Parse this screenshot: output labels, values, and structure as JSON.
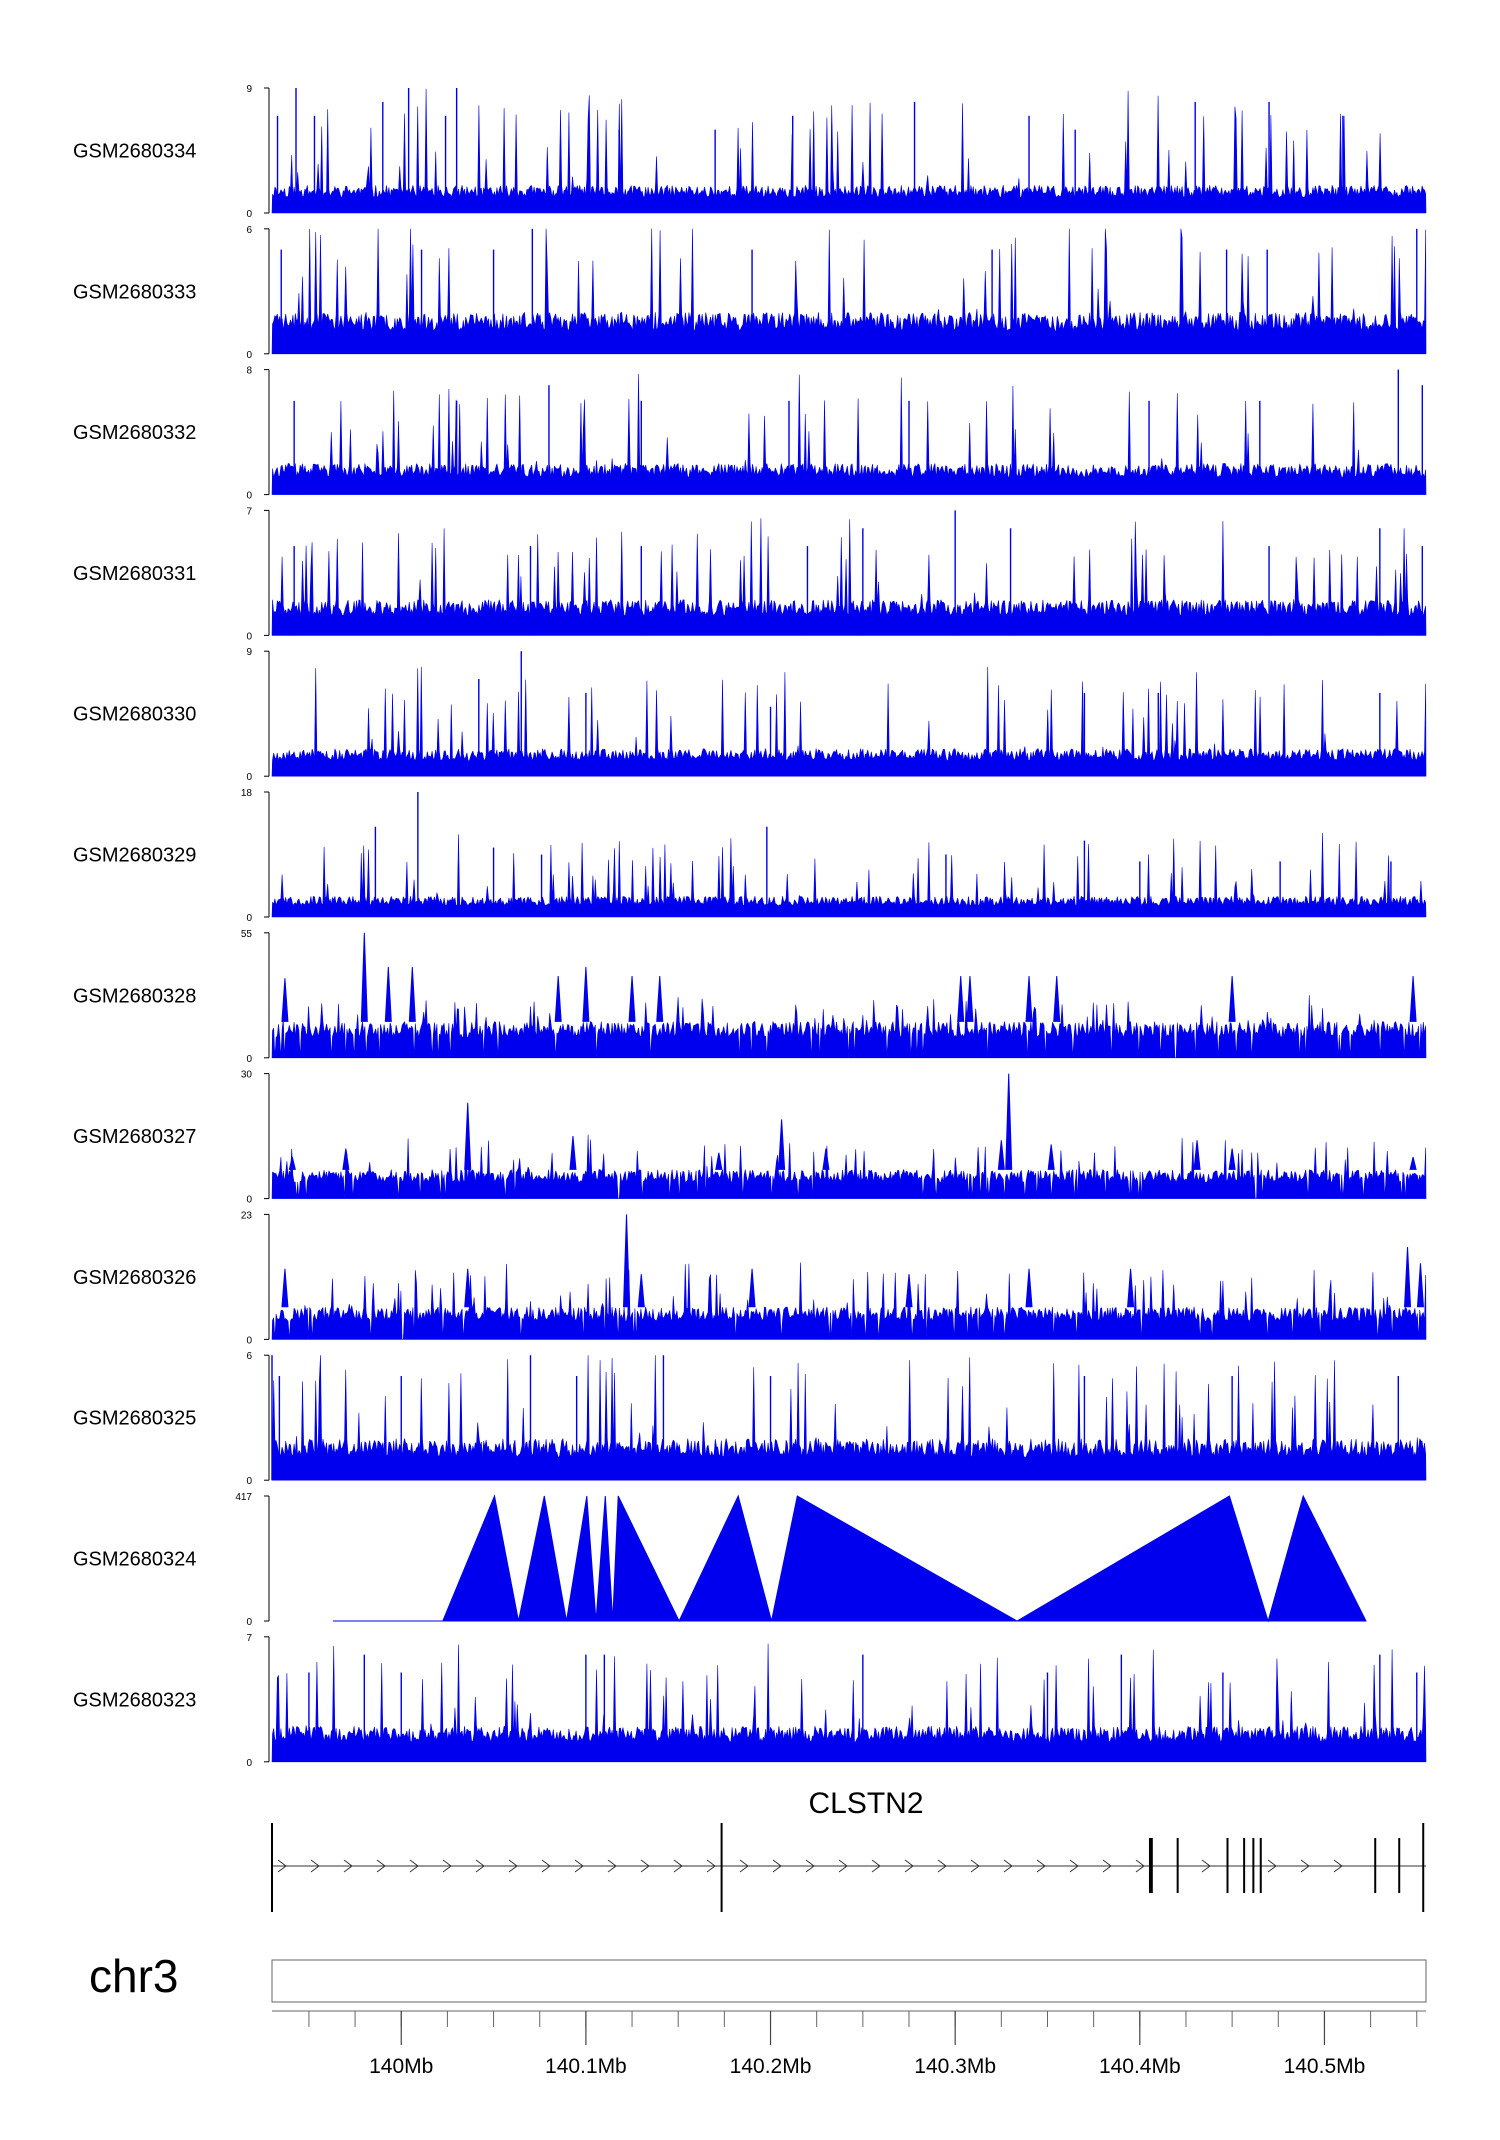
{
  "chart_data": {
    "type": "area",
    "color": "#0000ee",
    "x_range_mb": [
      139.93,
      140.555
    ],
    "tracks": [
      {
        "name": "GSM2680334",
        "ymax": 9,
        "ymin": 0,
        "base": 2,
        "peaks": [
          [
            139.933,
            7
          ],
          [
            139.943,
            9
          ],
          [
            139.953,
            7
          ],
          [
            139.99,
            8
          ],
          [
            140.004,
            9
          ],
          [
            140.024,
            7
          ],
          [
            140.03,
            9
          ],
          [
            140.118,
            6
          ],
          [
            140.17,
            6
          ],
          [
            140.212,
            7
          ],
          [
            140.278,
            8
          ],
          [
            140.34,
            7
          ],
          [
            140.365,
            6
          ],
          [
            140.43,
            8
          ],
          [
            140.47,
            8
          ],
          [
            140.51,
            7
          ]
        ],
        "noise": 6,
        "seed": 11
      },
      {
        "name": "GSM2680333",
        "ymax": 6,
        "ymin": 0,
        "base": 2,
        "peaks": [
          [
            139.935,
            5
          ],
          [
            140.011,
            5
          ],
          [
            140.05,
            5
          ],
          [
            140.071,
            6
          ],
          [
            140.19,
            5
          ],
          [
            140.32,
            5
          ],
          [
            140.447,
            5
          ],
          [
            140.469,
            5
          ],
          [
            140.55,
            6
          ]
        ],
        "noise": 4,
        "seed": 23
      },
      {
        "name": "GSM2680332",
        "ymax": 8,
        "ymin": 0,
        "base": 2,
        "peaks": [
          [
            139.942,
            6
          ],
          [
            140.03,
            6
          ],
          [
            140.08,
            7
          ],
          [
            140.13,
            6
          ],
          [
            140.21,
            6
          ],
          [
            140.275,
            6
          ],
          [
            140.405,
            6
          ],
          [
            140.465,
            6
          ],
          [
            140.54,
            8
          ],
          [
            140.553,
            7
          ]
        ],
        "noise": 5,
        "seed": 37
      },
      {
        "name": "GSM2680331",
        "ymax": 7,
        "ymin": 0,
        "base": 2,
        "peaks": [
          [
            139.942,
            5
          ],
          [
            140.07,
            5
          ],
          [
            140.13,
            5
          ],
          [
            140.22,
            5
          ],
          [
            140.25,
            6
          ],
          [
            140.3,
            7
          ],
          [
            140.33,
            6
          ],
          [
            140.47,
            5
          ],
          [
            140.53,
            6
          ],
          [
            140.553,
            5
          ]
        ],
        "noise": 4,
        "seed": 41
      },
      {
        "name": "GSM2680330",
        "ymax": 9,
        "ymin": 0,
        "base": 2,
        "peaks": [
          [
            140.042,
            7
          ],
          [
            140.065,
            9
          ],
          [
            140.1,
            6
          ],
          [
            140.2,
            5
          ],
          [
            140.37,
            6
          ],
          [
            140.41,
            6
          ],
          [
            140.53,
            6
          ]
        ],
        "noise": 5,
        "seed": 53
      },
      {
        "name": "GSM2680329",
        "ymax": 18,
        "ymin": 0,
        "base": 3,
        "peaks": [
          [
            139.986,
            13
          ],
          [
            140.009,
            18
          ],
          [
            140.05,
            10
          ],
          [
            140.076,
            9
          ],
          [
            140.198,
            13
          ],
          [
            140.295,
            9
          ],
          [
            140.37,
            11
          ],
          [
            140.4,
            8
          ],
          [
            140.476,
            8
          ],
          [
            140.536,
            8
          ]
        ],
        "noise": 8,
        "seed": 67
      },
      {
        "name": "GSM2680328",
        "ymax": 55,
        "ymin": 0,
        "base": 16,
        "peaks": [
          [
            139.937,
            35
          ],
          [
            139.98,
            55
          ],
          [
            139.993,
            40
          ],
          [
            140.006,
            40
          ],
          [
            140.085,
            36
          ],
          [
            140.1,
            40
          ],
          [
            140.125,
            36
          ],
          [
            140.14,
            36
          ],
          [
            140.303,
            36
          ],
          [
            140.308,
            36
          ],
          [
            140.34,
            36
          ],
          [
            140.355,
            36
          ],
          [
            140.45,
            36
          ],
          [
            140.548,
            36
          ]
        ],
        "noise": 10,
        "triangles": true,
        "seed": 79
      },
      {
        "name": "GSM2680327",
        "ymax": 30,
        "ymin": 0,
        "base": 7,
        "peaks": [
          [
            139.941,
            10
          ],
          [
            139.97,
            12
          ],
          [
            140.036,
            23
          ],
          [
            140.093,
            15
          ],
          [
            140.172,
            11
          ],
          [
            140.206,
            19
          ],
          [
            140.23,
            12
          ],
          [
            140.325,
            14
          ],
          [
            140.329,
            30
          ],
          [
            140.352,
            13
          ],
          [
            140.431,
            14
          ],
          [
            140.45,
            12
          ],
          [
            140.548,
            10
          ]
        ],
        "noise": 7,
        "triangles": true,
        "seed": 83
      },
      {
        "name": "GSM2680326",
        "ymax": 23,
        "ymin": 0,
        "base": 6,
        "peaks": [
          [
            139.937,
            13
          ],
          [
            140.036,
            13
          ],
          [
            140.122,
            23
          ],
          [
            140.13,
            12
          ],
          [
            140.19,
            13
          ],
          [
            140.275,
            12
          ],
          [
            140.34,
            13
          ],
          [
            140.395,
            13
          ],
          [
            140.545,
            17
          ],
          [
            140.552,
            14
          ]
        ],
        "noise": 7,
        "triangles": true,
        "seed": 97
      },
      {
        "name": "GSM2680325",
        "ymax": 6,
        "ymin": 0,
        "base": 2,
        "peaks": [
          [
            139.93,
            6
          ],
          [
            139.934,
            5
          ],
          [
            140.0,
            5
          ],
          [
            140.07,
            6
          ],
          [
            140.095,
            5
          ],
          [
            140.142,
            6
          ],
          [
            140.2,
            5
          ],
          [
            140.37,
            5
          ],
          [
            140.45,
            5
          ],
          [
            140.54,
            5
          ]
        ],
        "noise": 4,
        "seed": 101
      },
      {
        "name": "GSM2680324",
        "ymax": 417,
        "ymin": 0,
        "mode": "polygon",
        "points": [
          [
            139.963,
            0
          ],
          [
            140.0225,
            0
          ],
          [
            140.0505,
            417
          ],
          [
            140.0635,
            0
          ],
          [
            140.0775,
            417
          ],
          [
            140.0895,
            0
          ],
          [
            140.1005,
            417
          ],
          [
            140.1055,
            0
          ],
          [
            140.1105,
            417
          ],
          [
            140.1145,
            0
          ],
          [
            140.1175,
            417
          ],
          [
            140.1505,
            0
          ],
          [
            140.1825,
            417
          ],
          [
            140.2005,
            0
          ],
          [
            140.2145,
            417
          ],
          [
            140.3335,
            0
          ],
          [
            140.4485,
            417
          ],
          [
            140.4695,
            0
          ],
          [
            140.4885,
            417
          ],
          [
            140.5225,
            0
          ]
        ]
      },
      {
        "name": "GSM2680323",
        "ymax": 7,
        "ymin": 0,
        "base": 2,
        "peaks": [
          [
            139.95,
            5
          ],
          [
            139.98,
            6
          ],
          [
            140.0,
            5
          ],
          [
            140.1,
            6
          ],
          [
            140.11,
            6
          ],
          [
            140.25,
            6
          ],
          [
            140.35,
            5
          ],
          [
            140.39,
            6
          ],
          [
            140.445,
            5
          ],
          [
            140.53,
            6
          ],
          [
            140.55,
            5
          ]
        ],
        "noise": 4,
        "seed": 113
      }
    ],
    "gene": {
      "name": "CLSTN2",
      "start_mb": 139.93,
      "end_mb": 140.555,
      "strand": "+",
      "exons_mb": [
        139.93,
        140.1735,
        140.4055,
        140.4065,
        140.4205,
        140.4475,
        140.4565,
        140.4615,
        140.4655,
        140.5275,
        140.5405,
        140.5535
      ]
    },
    "chromosome": "chr3",
    "genome_axis": {
      "major_ticks": [
        {
          "pos": 140.0,
          "label": "140Mb"
        },
        {
          "pos": 140.1,
          "label": "140.1Mb"
        },
        {
          "pos": 140.2,
          "label": "140.2Mb"
        },
        {
          "pos": 140.3,
          "label": "140.3Mb"
        },
        {
          "pos": 140.4,
          "label": "140.4Mb"
        },
        {
          "pos": 140.5,
          "label": "140.5Mb"
        }
      ],
      "minor_step": 0.025
    }
  }
}
